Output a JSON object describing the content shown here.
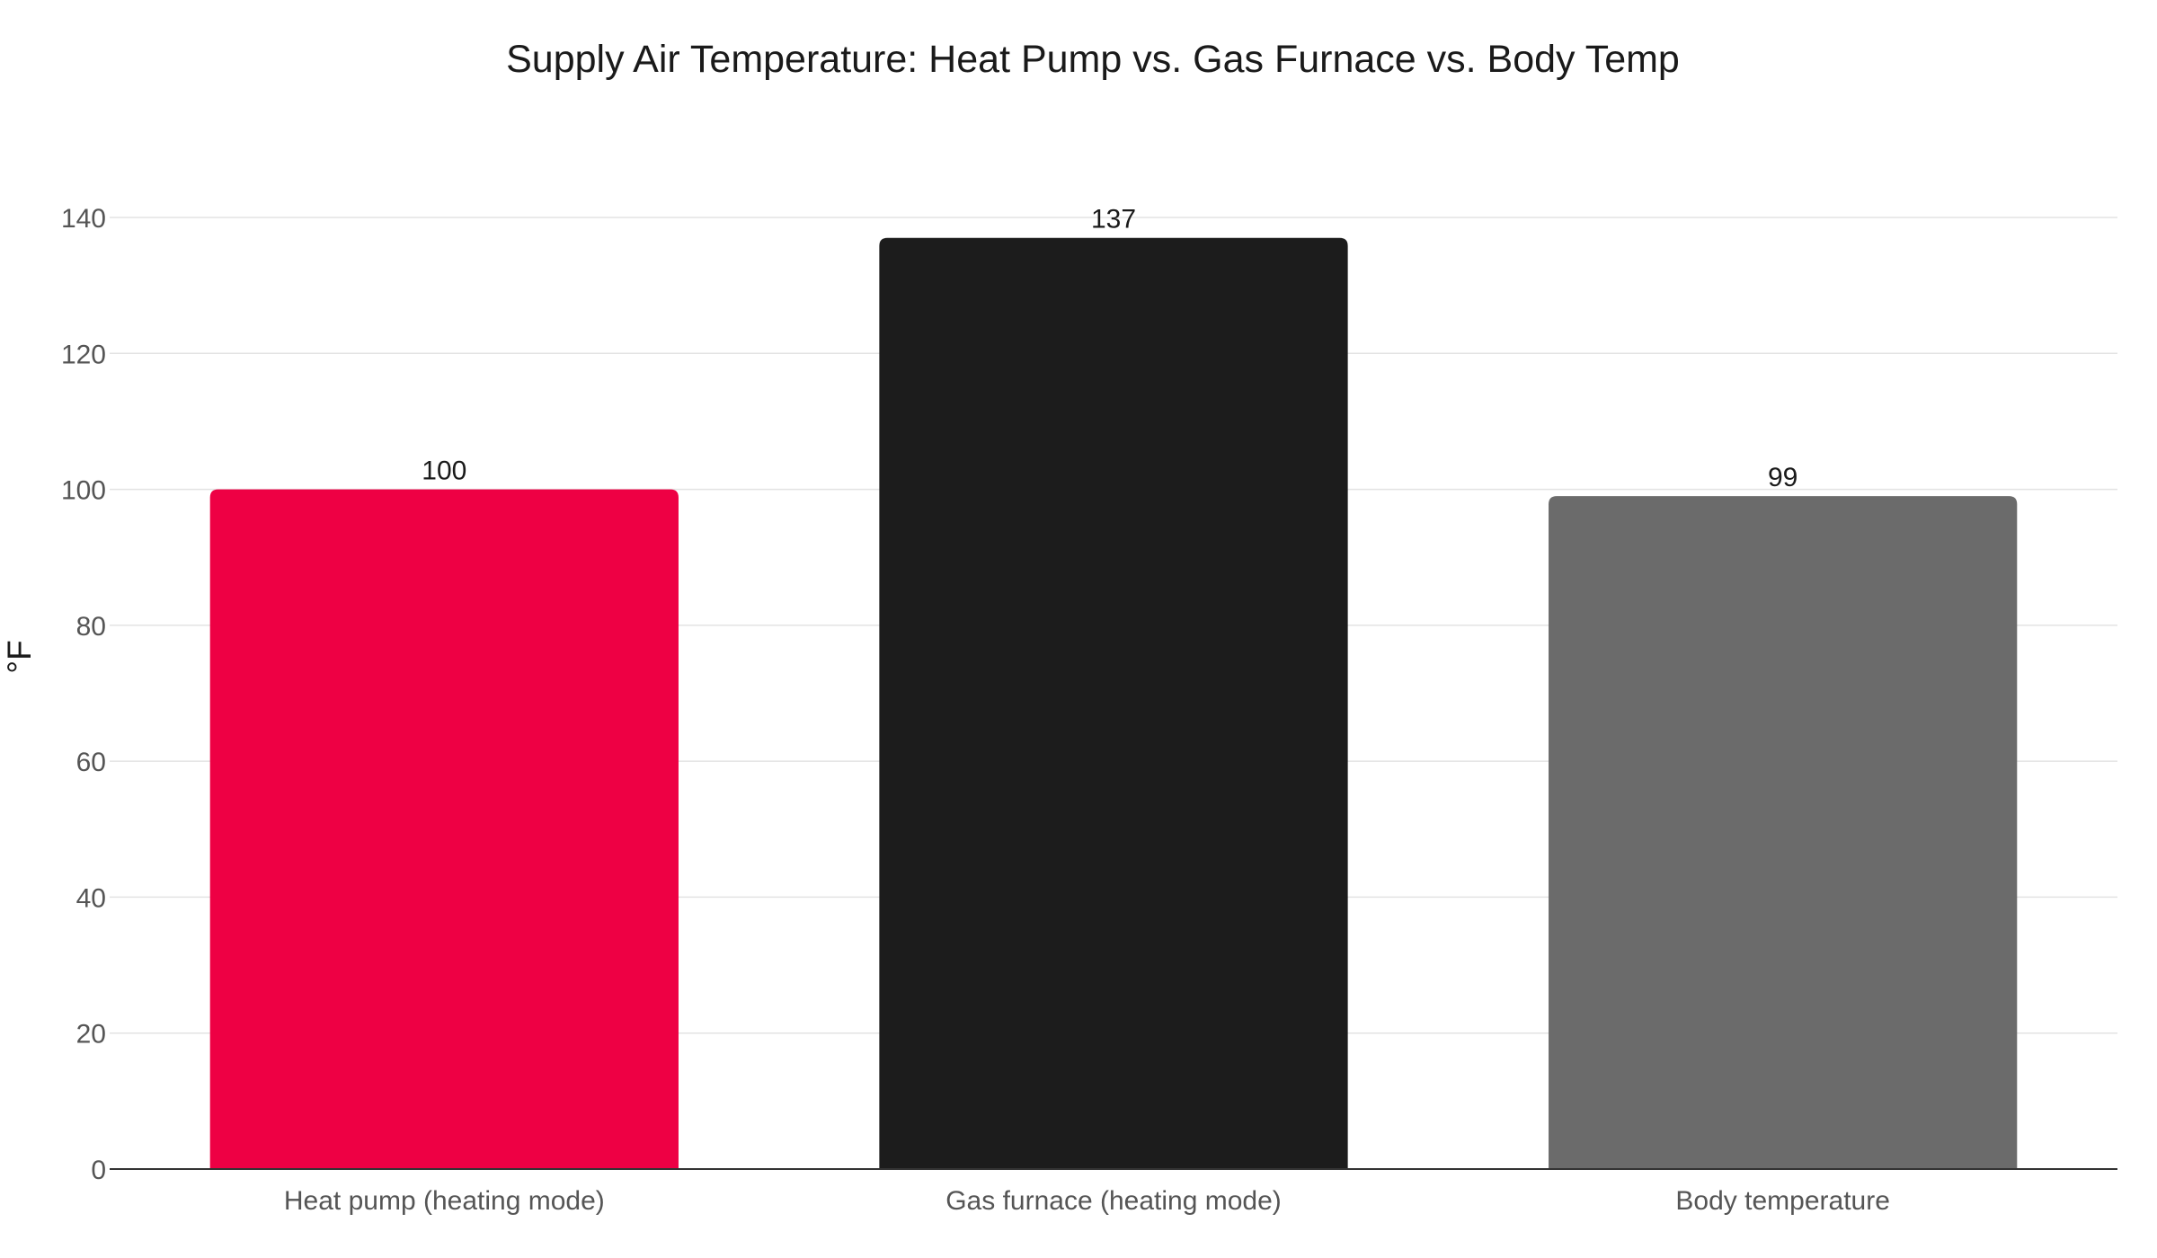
{
  "chart_data": {
    "type": "bar",
    "title": "Supply Air Temperature: Heat Pump vs. Gas Furnace vs. Body Temp",
    "xlabel": "",
    "ylabel": "°F",
    "categories": [
      "Heat pump (heating mode)",
      "Gas furnace (heating mode)",
      "Body temperature"
    ],
    "values": [
      100,
      137,
      99
    ],
    "data_labels": [
      "100",
      "137",
      "99"
    ],
    "colors": [
      "#ee0044",
      "#1c1c1c",
      "#6b6b6b"
    ],
    "ylim": [
      0,
      140
    ],
    "yticks": [
      0,
      20,
      40,
      60,
      80,
      100,
      120,
      140
    ],
    "grid": true,
    "legend": "none"
  }
}
